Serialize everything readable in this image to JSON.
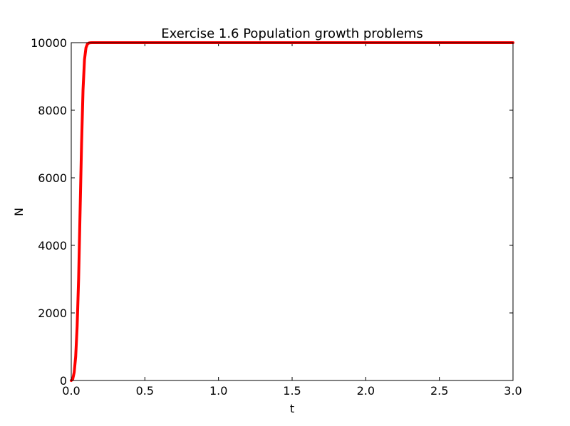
{
  "chart_data": {
    "type": "line",
    "title": "Exercise 1.6 Population growth problems",
    "xlabel": "t",
    "ylabel": "N",
    "xlim": [
      0,
      3
    ],
    "ylim": [
      0,
      10000
    ],
    "xticks": [
      "0.0",
      "0.5",
      "1.0",
      "1.5",
      "2.0",
      "2.5",
      "3.0"
    ],
    "yticks": [
      "0",
      "2000",
      "4000",
      "6000",
      "8000",
      "10000"
    ],
    "grid": false,
    "legend": "none",
    "series": [
      {
        "color": "#ff0000",
        "x": [
          0,
          0.01,
          0.02,
          0.03,
          0.04,
          0.05,
          0.06,
          0.07,
          0.08,
          0.09,
          0.1,
          0.11,
          0.12,
          0.13,
          0.14,
          0.15,
          0.2,
          0.5,
          1.0,
          1.5,
          2.0,
          2.5,
          3.0
        ],
        "y": [
          0,
          40,
          240,
          700,
          1600,
          3000,
          5000,
          7000,
          8600,
          9500,
          9850,
          9960,
          9990,
          9998,
          10000,
          10000,
          10000,
          10000,
          10000,
          10000,
          10000,
          10000,
          10000
        ]
      }
    ]
  }
}
